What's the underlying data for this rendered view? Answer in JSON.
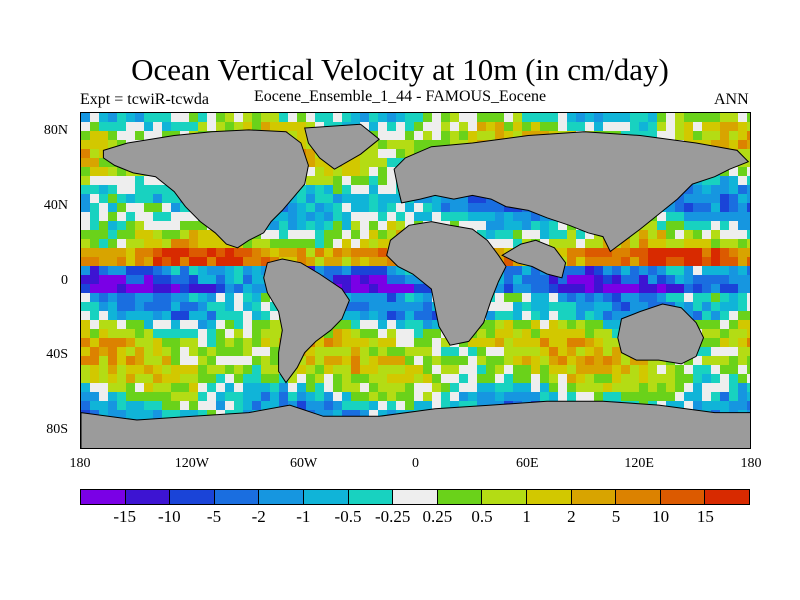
{
  "title": "Ocean Vertical Velocity at 10m (in cm/day)",
  "subtitle_left": "Expt = tcwiR-tcwda",
  "subtitle_center": "Eocene_Ensemble_1_44 - FAMOUS_Eocene",
  "subtitle_right": "ANN",
  "colors": {
    "land": "#9b9b9b",
    "background": "#ffffff"
  },
  "map": {
    "lat_ticks": [
      {
        "value": 80,
        "label": "80N"
      },
      {
        "value": 40,
        "label": "40N"
      },
      {
        "value": 0,
        "label": "0"
      },
      {
        "value": -40,
        "label": "40S"
      },
      {
        "value": -80,
        "label": "80S"
      }
    ],
    "lon_ticks": [
      {
        "value": -180,
        "label": "180"
      },
      {
        "value": -120,
        "label": "120W"
      },
      {
        "value": -60,
        "label": "60W"
      },
      {
        "value": 0,
        "label": "0"
      },
      {
        "value": 60,
        "label": "60E"
      },
      {
        "value": 120,
        "label": "120E"
      },
      {
        "value": 180,
        "label": "180"
      }
    ],
    "lat_range": [
      -90,
      90
    ],
    "lon_range": [
      -180,
      180
    ]
  },
  "colorbar": {
    "colors": [
      "#7a00e6",
      "#3d14d2",
      "#1a44d8",
      "#1a6ee0",
      "#1696e0",
      "#10b4d8",
      "#18d2c0",
      "#eeeeee",
      "#6ad21a",
      "#b4dc14",
      "#d2c800",
      "#d8a400",
      "#dc8200",
      "#dc5a00",
      "#d82a00"
    ],
    "labels": [
      "-15",
      "-10",
      "-5",
      "-2",
      "-1",
      "-0.5",
      "-0.25",
      "0.25",
      "0.5",
      "1",
      "2",
      "5",
      "10",
      "15"
    ]
  }
}
